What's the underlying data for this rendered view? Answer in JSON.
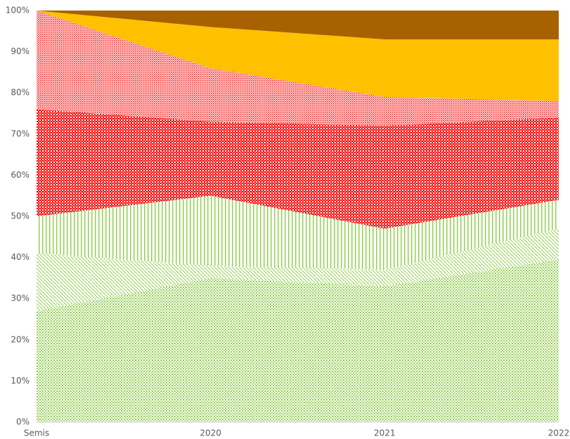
{
  "chart_data": {
    "type": "area",
    "stacked": true,
    "categories": [
      "Semis",
      "2020",
      "2021",
      "2022"
    ],
    "series": [
      {
        "color": "#92d050",
        "pattern": "dots",
        "values": [
          27,
          35,
          33,
          39.5
        ]
      },
      {
        "color": "#92d050",
        "pattern": "diagonal",
        "values": [
          14,
          3,
          4,
          7.5
        ]
      },
      {
        "color": "#92d050",
        "pattern": "vertical",
        "values": [
          9,
          17,
          10,
          7
        ]
      },
      {
        "color": "#ff0000",
        "pattern": "checker",
        "values": [
          26,
          18,
          25,
          20
        ]
      },
      {
        "color": "#ff0000",
        "pattern": "fine-dots",
        "values": [
          24,
          13,
          7,
          4
        ]
      },
      {
        "color": "#ffc000",
        "pattern": "solid",
        "values": [
          0,
          10,
          14,
          15
        ]
      },
      {
        "color": "#a86100",
        "pattern": "solid",
        "values": [
          0,
          4,
          7,
          7
        ]
      }
    ],
    "ylim": [
      0,
      100
    ],
    "yticks": [
      {
        "value": 0,
        "label": "0%"
      },
      {
        "value": 10,
        "label": "10%"
      },
      {
        "value": 20,
        "label": "20%"
      },
      {
        "value": 30,
        "label": "30%"
      },
      {
        "value": 40,
        "label": "40%"
      },
      {
        "value": 50,
        "label": "50%"
      },
      {
        "value": 60,
        "label": "60%"
      },
      {
        "value": 70,
        "label": "70%"
      },
      {
        "value": 80,
        "label": "80%"
      },
      {
        "value": 90,
        "label": "90%"
      },
      {
        "value": 100,
        "label": "100%"
      }
    ]
  }
}
